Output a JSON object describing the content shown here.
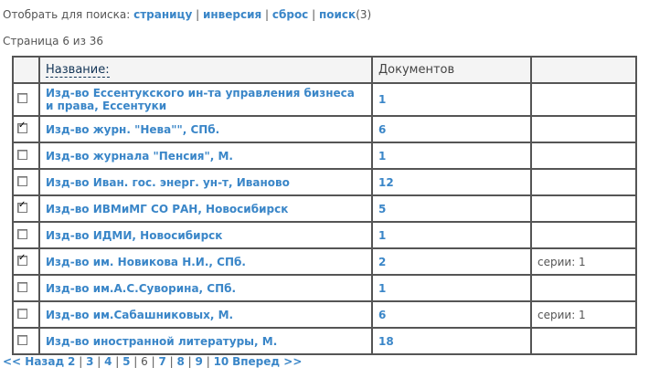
{
  "filter": {
    "label": "Отобрать для поиска:",
    "links": [
      "страницу",
      "инверсия",
      "сброс",
      "поиск"
    ],
    "count": "(3)"
  },
  "page_info": "Страница 6 из 36",
  "table": {
    "headers": [
      "",
      "Название:",
      "Документов",
      ""
    ],
    "rows": [
      {
        "checked": false,
        "name": "Изд-во Ессентукского ин-та управления бизнеса и права, Ессентуки",
        "docs": "1",
        "extra": ""
      },
      {
        "checked": true,
        "name": "Изд-во журн. \"Нева\"\", СПб.",
        "docs": "6",
        "extra": ""
      },
      {
        "checked": false,
        "name": "Изд-во журнала \"Пенсия\", М.",
        "docs": "1",
        "extra": ""
      },
      {
        "checked": false,
        "name": "Изд-во Иван. гос. энерг. ун-т, Иваново",
        "docs": "12",
        "extra": ""
      },
      {
        "checked": true,
        "name": "Изд-во ИВМиМГ СО РАН, Новосибирск",
        "docs": "5",
        "extra": ""
      },
      {
        "checked": false,
        "name": "Изд-во ИДМИ, Новосибирск",
        "docs": "1",
        "extra": ""
      },
      {
        "checked": true,
        "name": "Изд-во им. Новикова Н.И., СПб.",
        "docs": "2",
        "extra": "серии: 1"
      },
      {
        "checked": false,
        "name": "Изд-во им.А.С.Суворина, СПб.",
        "docs": "1",
        "extra": ""
      },
      {
        "checked": false,
        "name": "Изд-во им.Сабашниковых, М.",
        "docs": "6",
        "extra": "серии: 1"
      },
      {
        "checked": false,
        "name": "Изд-во иностранной литературы, М.",
        "docs": "18",
        "extra": ""
      }
    ]
  },
  "pager": {
    "prev": "<< Назад",
    "pages": [
      "2",
      "3",
      "4",
      "5",
      "6",
      "7",
      "8",
      "9",
      "10"
    ],
    "current": "6",
    "next": "Вперед >>"
  }
}
